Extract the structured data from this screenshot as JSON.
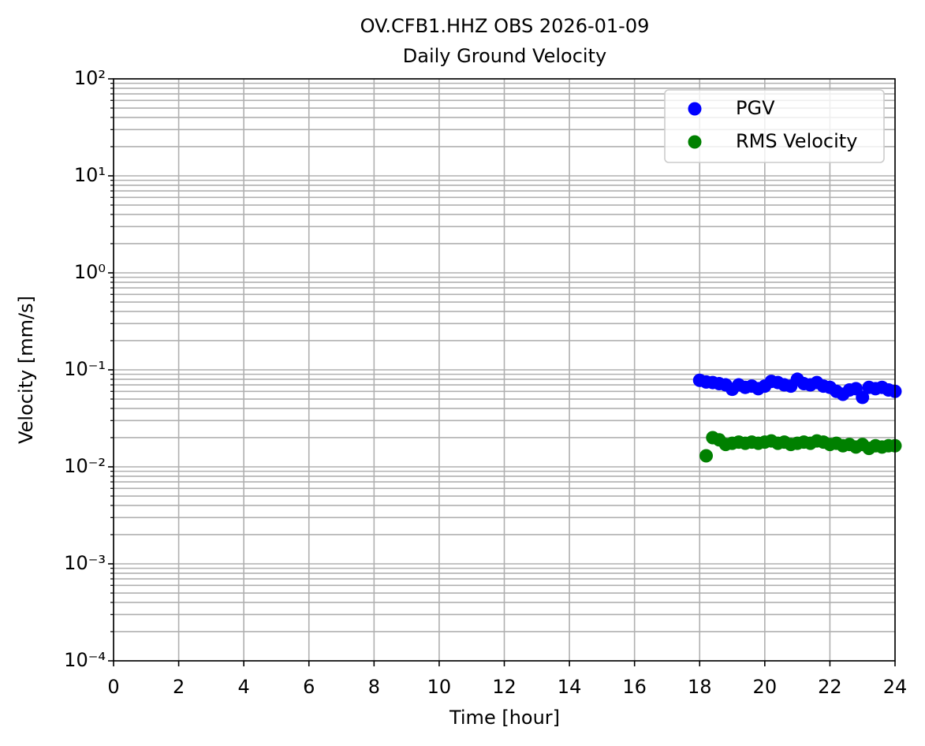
{
  "chart_data": {
    "type": "scatter",
    "title": "OV.CFB1.HHZ OBS 2026-01-09",
    "subtitle": "Daily Ground Velocity",
    "x_label": "Time [hour]",
    "y_label": "Velocity [mm/s]",
    "y_scale": "log",
    "grid": true,
    "minor_grid": true,
    "legend": "upper right",
    "xlim": [
      0,
      24
    ],
    "xticks": [
      0,
      2,
      4,
      6,
      8,
      10,
      12,
      14,
      16,
      18,
      20,
      22,
      24
    ],
    "ylim": [
      0.0001,
      100
    ],
    "yticks": [
      {
        "value": 0.0001,
        "label": "10⁻⁴"
      },
      {
        "value": 0.001,
        "label": "10⁻³"
      },
      {
        "value": 0.01,
        "label": "10⁻²"
      },
      {
        "value": 0.1,
        "label": "10⁻¹"
      },
      {
        "value": 1,
        "label": "10⁰"
      },
      {
        "value": 10,
        "label": "10¹"
      },
      {
        "value": 100,
        "label": "10²"
      }
    ],
    "x": [
      18.0,
      18.2,
      18.4,
      18.6,
      18.8,
      19.0,
      19.2,
      19.4,
      19.6,
      19.8,
      20.0,
      20.2,
      20.4,
      20.6,
      20.8,
      21.0,
      21.2,
      21.4,
      21.6,
      21.8,
      22.0,
      22.2,
      22.4,
      22.6,
      22.8,
      23.0,
      23.2,
      23.4,
      23.6,
      23.8,
      24.0
    ],
    "series": [
      {
        "name": "PGV",
        "color": "#0000ff",
        "values": [
          0.078,
          0.075,
          0.074,
          0.072,
          0.07,
          0.063,
          0.07,
          0.066,
          0.068,
          0.064,
          0.068,
          0.076,
          0.074,
          0.07,
          0.068,
          0.08,
          0.072,
          0.07,
          0.074,
          0.068,
          0.066,
          0.06,
          0.056,
          0.062,
          0.064,
          0.052,
          0.066,
          0.064,
          0.066,
          0.062,
          0.06
        ]
      },
      {
        "name": "RMS Velocity",
        "color": "#008000",
        "values": [
          null,
          0.013,
          0.02,
          0.019,
          0.017,
          0.0175,
          0.018,
          0.0175,
          0.018,
          0.0175,
          0.018,
          0.0185,
          0.0175,
          0.018,
          0.017,
          0.0175,
          0.018,
          0.0175,
          0.0185,
          0.018,
          0.017,
          0.0175,
          0.0165,
          0.017,
          0.016,
          0.017,
          0.0155,
          0.0165,
          0.016,
          0.0165,
          0.0165
        ]
      }
    ]
  }
}
